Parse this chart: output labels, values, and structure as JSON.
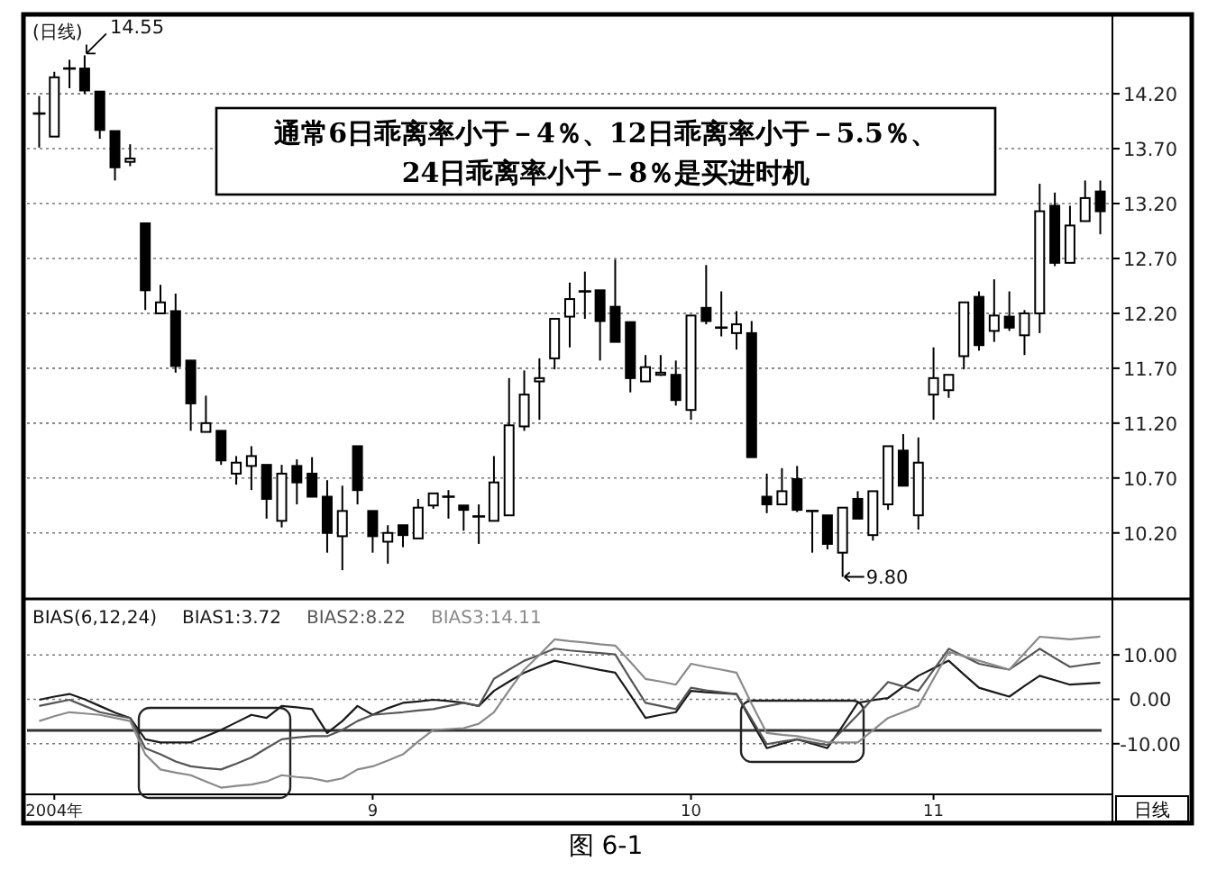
{
  "chart_data": [
    {
      "type": "candlestick",
      "title": "(日线)",
      "annotations": [
        "通常6日乖离率小于－4％、12日乖离率小于－5.5％、",
        "24日乖离率小于－8％是买进时机",
        "14.55",
        "9.80"
      ],
      "categories": [
        null,
        null,
        null,
        null,
        null,
        null,
        null,
        null,
        null,
        null,
        null,
        null,
        null,
        null,
        null,
        null,
        null,
        null,
        null,
        null,
        null,
        null,
        null,
        null,
        null,
        null,
        null,
        null,
        null,
        null,
        null,
        null,
        null,
        null,
        null,
        null,
        null,
        null,
        null,
        null,
        null,
        null,
        null,
        null,
        null,
        null,
        null,
        null,
        null,
        null,
        null,
        null,
        null,
        null,
        null,
        null,
        null,
        null,
        null,
        null,
        null,
        null,
        null,
        null,
        null,
        null,
        null,
        null,
        null,
        null,
        null
      ],
      "ohlc": [
        [
          14.02,
          14.18,
          13.71,
          14.02
        ],
        [
          13.81,
          14.4,
          13.81,
          14.35
        ],
        [
          14.43,
          14.51,
          14.25,
          14.43
        ],
        [
          14.43,
          14.55,
          14.2,
          14.23
        ],
        [
          14.22,
          14.22,
          13.79,
          13.87
        ],
        [
          13.86,
          13.86,
          13.41,
          13.53
        ],
        [
          13.58,
          13.74,
          13.54,
          13.61
        ],
        [
          13.02,
          13.02,
          12.23,
          12.41
        ],
        [
          12.2,
          12.46,
          12.2,
          12.3
        ],
        [
          12.22,
          12.38,
          11.66,
          11.72
        ],
        [
          11.77,
          11.77,
          11.13,
          11.38
        ],
        [
          11.12,
          11.45,
          11.12,
          11.2
        ],
        [
          11.13,
          11.13,
          10.82,
          10.86
        ],
        [
          10.74,
          10.9,
          10.64,
          10.84
        ],
        [
          10.81,
          10.99,
          10.59,
          10.9
        ],
        [
          10.82,
          10.82,
          10.33,
          10.51
        ],
        [
          10.31,
          10.82,
          10.25,
          10.74
        ],
        [
          10.81,
          10.87,
          10.46,
          10.66
        ],
        [
          10.74,
          10.89,
          10.53,
          10.53
        ],
        [
          10.53,
          10.68,
          10.02,
          10.2
        ],
        [
          10.17,
          10.63,
          9.86,
          10.4
        ],
        [
          10.99,
          10.99,
          10.46,
          10.59
        ],
        [
          10.4,
          10.4,
          10.02,
          10.17
        ],
        [
          10.12,
          10.27,
          9.92,
          10.2
        ],
        [
          10.27,
          10.27,
          10.07,
          10.18
        ],
        [
          10.15,
          10.51,
          10.15,
          10.43
        ],
        [
          10.45,
          10.56,
          10.42,
          10.56
        ],
        [
          10.53,
          10.59,
          10.33,
          10.53
        ],
        [
          10.45,
          10.45,
          10.22,
          10.41
        ],
        [
          10.35,
          10.46,
          10.1,
          10.35
        ],
        [
          10.31,
          10.9,
          10.31,
          10.66
        ],
        [
          10.36,
          11.61,
          10.36,
          11.18
        ],
        [
          11.17,
          11.68,
          11.13,
          11.46
        ],
        [
          11.58,
          11.79,
          11.23,
          11.61
        ],
        [
          11.79,
          12.15,
          11.69,
          12.15
        ],
        [
          12.17,
          12.48,
          11.89,
          12.33
        ],
        [
          12.4,
          12.58,
          12.15,
          12.4
        ],
        [
          12.41,
          12.41,
          11.77,
          12.13
        ],
        [
          12.26,
          12.69,
          11.94,
          11.94
        ],
        [
          12.12,
          12.12,
          11.48,
          11.61
        ],
        [
          11.58,
          11.82,
          11.58,
          11.71
        ],
        [
          11.64,
          11.82,
          11.63,
          11.66
        ],
        [
          11.64,
          11.77,
          11.36,
          11.41
        ],
        [
          11.32,
          12.18,
          11.23,
          12.18
        ],
        [
          12.25,
          12.64,
          12.1,
          12.13
        ],
        [
          12.07,
          12.4,
          11.99,
          12.07
        ],
        [
          12.02,
          12.22,
          11.87,
          12.1
        ],
        [
          12.02,
          12.13,
          10.89,
          10.89
        ],
        [
          10.53,
          10.74,
          10.38,
          10.46
        ],
        [
          10.46,
          10.79,
          10.46,
          10.58
        ],
        [
          10.69,
          10.81,
          10.39,
          10.41
        ],
        [
          10.4,
          10.4,
          10.02,
          10.4
        ],
        [
          10.36,
          10.36,
          10.05,
          10.1
        ],
        [
          10.02,
          10.43,
          9.8,
          10.43
        ],
        [
          10.51,
          10.58,
          10.33,
          10.33
        ],
        [
          10.18,
          10.58,
          10.13,
          10.58
        ],
        [
          10.46,
          10.99,
          10.41,
          10.99
        ],
        [
          10.95,
          11.1,
          10.63,
          10.63
        ],
        [
          10.36,
          11.07,
          10.23,
          10.84
        ],
        [
          11.46,
          11.89,
          11.23,
          11.61
        ],
        [
          11.5,
          11.64,
          11.43,
          11.64
        ],
        [
          11.81,
          12.3,
          11.69,
          12.3
        ],
        [
          12.35,
          12.4,
          11.86,
          11.91
        ],
        [
          12.04,
          12.51,
          11.94,
          12.18
        ],
        [
          12.17,
          12.4,
          12.04,
          12.07
        ],
        [
          12.0,
          12.23,
          11.82,
          12.2
        ],
        [
          12.2,
          13.38,
          12.02,
          13.13
        ],
        [
          13.18,
          13.3,
          12.63,
          12.66
        ],
        [
          12.66,
          13.18,
          12.66,
          13.0
        ],
        [
          13.04,
          13.41,
          13.04,
          13.25
        ],
        [
          13.31,
          13.41,
          12.92,
          13.13
        ]
      ],
      "ylim": [
        9.64,
        14.89
      ],
      "yticks": [
        {
          "value": 10.2,
          "label": "10.20"
        },
        {
          "value": 10.7,
          "label": "10.70"
        },
        {
          "value": 11.2,
          "label": "11.20"
        },
        {
          "value": 11.7,
          "label": "11.70"
        },
        {
          "value": 12.2,
          "label": "12.20"
        },
        {
          "value": 12.7,
          "label": "12.70"
        },
        {
          "value": 13.2,
          "label": "13.20"
        },
        {
          "value": 13.7,
          "label": "13.70"
        },
        {
          "value": 14.2,
          "label": "14.20"
        }
      ],
      "grid": "y",
      "tick_labels": "y"
    },
    {
      "type": "line",
      "title": "BIAS(6,12,24)",
      "annotations": [
        "日线",
        "图 6-1"
      ],
      "categories": [
        null,
        "2004年",
        null,
        null,
        null,
        null,
        null,
        null,
        null,
        null,
        null,
        null,
        null,
        null,
        null,
        null,
        null,
        null,
        null,
        null,
        null,
        null,
        "9",
        null,
        null,
        null,
        null,
        null,
        null,
        null,
        null,
        null,
        null,
        null,
        null,
        null,
        null,
        null,
        null,
        null,
        null,
        null,
        null,
        "10",
        null,
        null,
        null,
        null,
        null,
        null,
        null,
        null,
        null,
        null,
        null,
        null,
        null,
        null,
        null,
        "11",
        null,
        null,
        null,
        null,
        null,
        null,
        null,
        null,
        null,
        null,
        null
      ],
      "series": [
        {
          "name": "BIAS1:3.72",
          "color": "#1a1a1a",
          "values": [
            -0.1,
            0.6,
            1.2,
            0.0,
            -1.5,
            -3.0,
            -4.2,
            -9.0,
            -9.7,
            -9.7,
            -9.7,
            -8.3,
            -6.9,
            -5.2,
            -3.5,
            -4.2,
            -1.5,
            -1.8,
            -2.2,
            -7.6,
            -4.9,
            -1.5,
            -3.5,
            -2.0,
            -0.8,
            -0.5,
            -0.1,
            -0.4,
            -0.8,
            -1.5,
            1.9,
            4.0,
            6.0,
            7.4,
            8.7,
            8.0,
            7.3,
            6.6,
            6.0,
            1.0,
            -4.2,
            -3.5,
            -2.9,
            1.9,
            1.6,
            1.4,
            1.2,
            -5.0,
            -11.0,
            -10.0,
            -9.0,
            -10.0,
            -11.0,
            -6.0,
            -0.8,
            -0.2,
            0.3,
            2.8,
            5.3,
            7.0,
            8.7,
            5.6,
            2.6,
            1.6,
            0.6,
            3.0,
            5.3,
            4.3,
            3.3,
            3.5,
            3.72
          ]
        },
        {
          "name": "BIAS2:8.22",
          "color": "#555555",
          "values": [
            -1.5,
            -0.8,
            -0.1,
            -1.5,
            -2.9,
            -3.6,
            -4.2,
            -11.0,
            -12.4,
            -14.0,
            -15.1,
            -15.5,
            -15.8,
            -14.5,
            -13.1,
            -11.0,
            -9.0,
            -8.6,
            -8.3,
            -8.3,
            -6.9,
            -4.9,
            -3.5,
            -3.2,
            -2.9,
            -2.5,
            -2.2,
            -1.5,
            -0.8,
            -1.5,
            4.6,
            6.7,
            8.7,
            10.0,
            11.4,
            11.0,
            10.7,
            10.4,
            10.1,
            4.6,
            -0.8,
            -1.5,
            -2.2,
            2.6,
            2.0,
            1.6,
            1.2,
            -4.5,
            -10.1,
            -9.5,
            -9.0,
            -9.7,
            -10.3,
            -7.0,
            -3.5,
            0.2,
            3.9,
            2.9,
            1.9,
            6.6,
            11.4,
            9.7,
            8.0,
            7.3,
            6.7,
            9.0,
            11.4,
            9.3,
            7.3,
            7.8,
            8.22
          ]
        },
        {
          "name": "BIAS3:14.11",
          "color": "#8a8a8a",
          "values": [
            -4.9,
            -3.8,
            -2.9,
            -3.2,
            -3.5,
            -4.2,
            -4.9,
            -12.4,
            -15.8,
            -16.5,
            -17.1,
            -18.5,
            -19.9,
            -19.5,
            -19.2,
            -18.5,
            -17.1,
            -17.5,
            -17.8,
            -18.5,
            -17.8,
            -15.8,
            -15.1,
            -13.8,
            -12.4,
            -9.5,
            -6.9,
            -6.7,
            -6.5,
            -5.5,
            -2.9,
            2.0,
            6.7,
            10.0,
            13.5,
            13.1,
            12.8,
            12.4,
            12.1,
            8.4,
            4.6,
            4.0,
            3.3,
            8.0,
            7.3,
            6.7,
            6.0,
            -1.0,
            -7.6,
            -8.0,
            -8.3,
            -9.0,
            -9.7,
            -9.7,
            -9.7,
            -7.0,
            -4.2,
            -2.9,
            -1.5,
            4.6,
            10.7,
            9.7,
            8.7,
            7.7,
            6.7,
            10.4,
            14.1,
            13.8,
            13.5,
            13.8,
            14.11
          ]
        }
      ],
      "ylim": [
        -21,
        21.6
      ],
      "yticks": [
        {
          "value": 10,
          "label": "10.00"
        },
        {
          "value": 0,
          "label": "0.00"
        },
        {
          "value": -10,
          "label": "-10.00"
        }
      ],
      "ref_lines": [
        {
          "axis": "y",
          "value": -7,
          "color": "#333333"
        }
      ],
      "grid": "y",
      "legend": "top left",
      "marker": "none",
      "line_style": "solid"
    }
  ]
}
